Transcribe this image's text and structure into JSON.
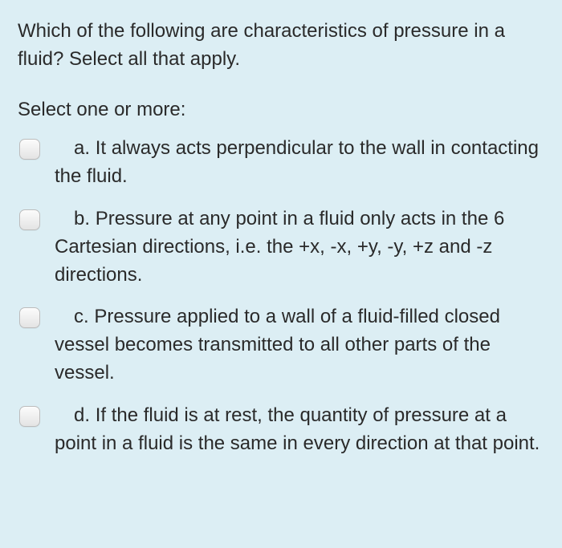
{
  "question": "Which of the following are characteristics of pressure in a fluid? Select all that apply.",
  "instruction": "Select one or more:",
  "options": [
    {
      "letter": "a.",
      "text": "It always acts perpendicular to the wall in contacting the fluid."
    },
    {
      "letter": "b.",
      "text": "Pressure at any point in a fluid only acts in the 6 Cartesian directions, i.e. the +x, -x, +y, -y, +z and -z directions."
    },
    {
      "letter": "c.",
      "text": "Pressure applied to a wall of a fluid-filled closed vessel becomes transmitted to all other parts of the vessel."
    },
    {
      "letter": "d.",
      "text": "If the fluid is at rest, the quantity of pressure at a point in a fluid is the same in every direction at that point."
    }
  ],
  "colors": {
    "background": "#dceef4",
    "text": "#2a2a2a",
    "checkbox_border": "#bcbcbc"
  }
}
